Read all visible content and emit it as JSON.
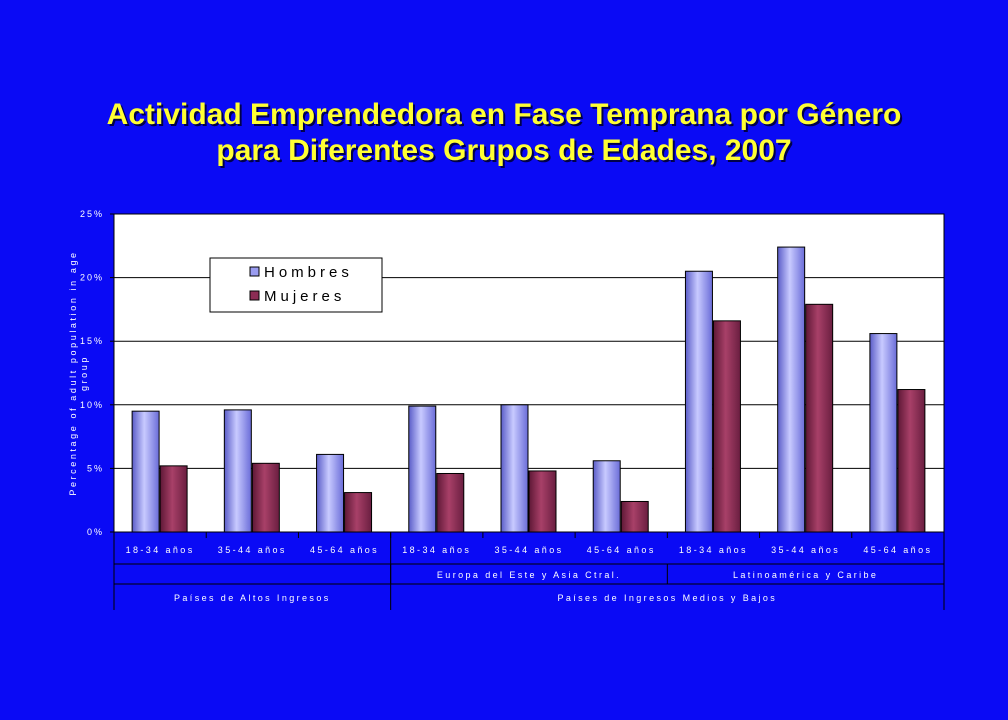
{
  "title_lines": [
    "Actividad Emprendedora en Fase Temprana por Género",
    "para Diferentes Grupos de Edades, 2007"
  ],
  "colors": {
    "background": "#0a0af5",
    "title": "#ffff33",
    "hombres": "#9a9cf0",
    "mujeres": "#8c2c54",
    "plot_bg": "#ffffff"
  },
  "chart_data": {
    "type": "bar",
    "categories": [
      "18-34 años",
      "35-44 años",
      "45-64 años",
      "18-34 años",
      "35-44 años",
      "45-64 años",
      "18-34 años",
      "35-44 años",
      "45-64 años"
    ],
    "subgroups": [
      {
        "label": "",
        "from": 0,
        "to": 2
      },
      {
        "label": "Europa del Este y Asia Ctral.",
        "from": 3,
        "to": 5
      },
      {
        "label": "Latinoamérica y Caribe",
        "from": 6,
        "to": 8
      }
    ],
    "groups": [
      {
        "label": "Países de Altos Ingresos",
        "from": 0,
        "to": 2
      },
      {
        "label": "Países de Ingresos Medios y Bajos",
        "from": 3,
        "to": 8
      }
    ],
    "series": [
      {
        "name": "Hombres",
        "values": [
          9.5,
          9.6,
          6.1,
          9.9,
          10.0,
          5.6,
          20.5,
          22.4,
          15.6
        ]
      },
      {
        "name": "Mujeres",
        "values": [
          5.2,
          5.4,
          3.1,
          4.6,
          4.8,
          2.4,
          16.6,
          17.9,
          11.2
        ]
      }
    ],
    "ylabel_lines": [
      "Percentage of adult population in age",
      "group"
    ],
    "yticks": [
      "0%",
      "5%",
      "10%",
      "15%",
      "20%",
      "25%"
    ],
    "ylim": [
      0,
      25
    ],
    "grid": true,
    "legend_position": "top-left"
  }
}
